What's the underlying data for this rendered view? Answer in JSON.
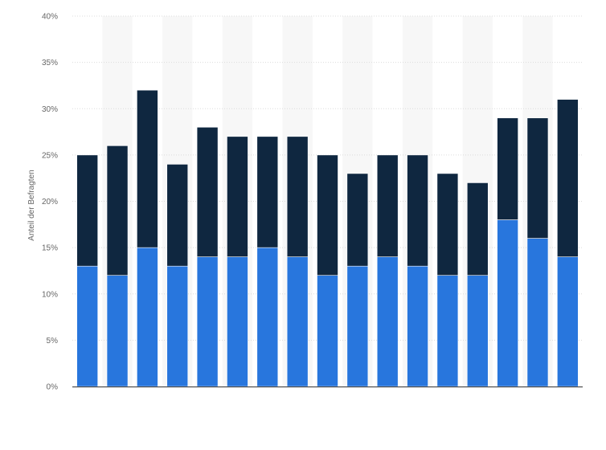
{
  "chart_data": {
    "type": "bar",
    "stacked": true,
    "ylabel": "Anteil der Befragten",
    "xlabel": "",
    "ylim": [
      0,
      40
    ],
    "y_ticks": [
      "0%",
      "5%",
      "10%",
      "15%",
      "20%",
      "25%",
      "30%",
      "35%",
      "40%"
    ],
    "y_tick_values": [
      0,
      5,
      10,
      15,
      20,
      25,
      30,
      35,
      40
    ],
    "grid": true,
    "legend": "none",
    "series": [
      {
        "color": "#2876dd",
        "values": [
          13,
          12,
          15,
          13,
          14,
          14,
          15,
          14,
          12,
          13,
          14,
          13,
          12,
          12,
          18,
          16,
          14
        ]
      },
      {
        "color": "#0f2740",
        "values": [
          12,
          14,
          17,
          11,
          14,
          13,
          12,
          13,
          13,
          10,
          11,
          12,
          11,
          10,
          11,
          13,
          17
        ]
      }
    ]
  }
}
